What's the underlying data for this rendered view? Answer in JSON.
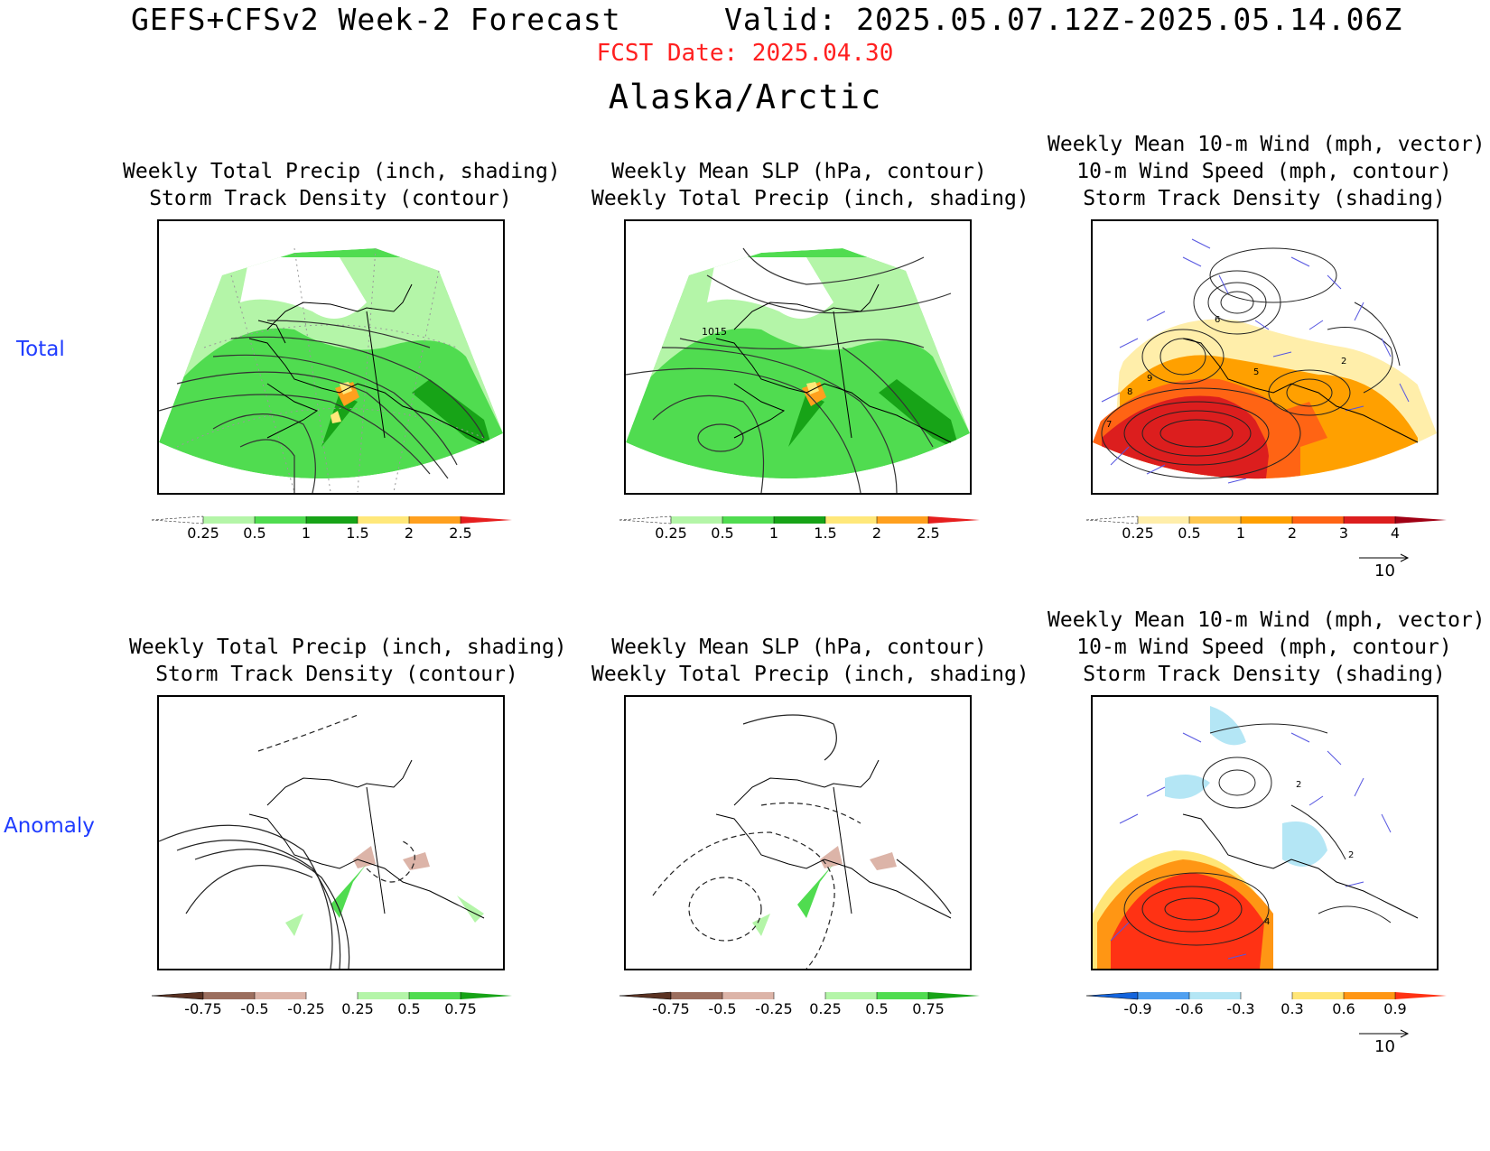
{
  "header": {
    "title_left": "GEFS+CFSv2 Week-2 Forecast",
    "title_right": "Valid: 2025.05.07.12Z-2025.05.14.06Z",
    "fcst_date": "FCST Date: 2025.04.30",
    "region": "Alaska/Arctic"
  },
  "rows": {
    "total_label": "Total",
    "anomaly_label": "Anomaly"
  },
  "panels": {
    "p1": {
      "line1": "Weekly Total Precip (inch, shading)",
      "line2": "Storm Track Density (contour)"
    },
    "p2": {
      "line1": "Weekly Mean SLP (hPa, contour)",
      "line2": "Weekly Total Precip (inch, shading)"
    },
    "p3": {
      "line1": "Weekly Mean 10-m Wind (mph, vector)",
      "line2": "10-m Wind Speed (mph, contour)",
      "line3": "Storm Track Density (shading)"
    },
    "p4": {
      "line1": "Weekly Total Precip (inch, shading)",
      "line2": "Storm Track Density (contour)"
    },
    "p5": {
      "line1": "Weekly Mean SLP (hPa, contour)",
      "line2": "Weekly Total Precip (inch, shading)"
    },
    "p6": {
      "line1": "Weekly Mean 10-m Wind (mph, vector)",
      "line2": "10-m Wind Speed (mph, contour)",
      "line3": "Storm Track Density (shading)"
    }
  },
  "map_labels": {
    "slp_isobar": "1015",
    "p3_contours": [
      "6",
      "9",
      "8",
      "7",
      "5",
      "2"
    ],
    "p6_contours": [
      "2",
      "2",
      "4"
    ]
  },
  "colorbars": {
    "precip_total": {
      "labels": [
        "0.25",
        "0.5",
        "1",
        "1.5",
        "2",
        "2.5"
      ],
      "colors": [
        "#ffffff",
        "#b4f5a8",
        "#50dc50",
        "#17a317",
        "#ffe87a",
        "#ffa01e",
        "#e61e1e"
      ]
    },
    "density_total": {
      "labels": [
        "0.25",
        "0.5",
        "1",
        "2",
        "3",
        "4"
      ],
      "colors": [
        "#ffffff",
        "#ffeeaa",
        "#ffc850",
        "#ffa000",
        "#ff6414",
        "#dc1e1e",
        "#a00014"
      ]
    },
    "precip_anom": {
      "labels": [
        "-0.75",
        "-0.5",
        "-0.25",
        "0.25",
        "0.5",
        "0.75"
      ],
      "colors": [
        "#5a3222",
        "#9b6e5e",
        "#dcb4a8",
        "#ffffff",
        "#b4f5a8",
        "#50dc50",
        "#17a317"
      ]
    },
    "density_anom": {
      "labels": [
        "-0.9",
        "-0.6",
        "-0.3",
        "0.3",
        "0.6",
        "0.9"
      ],
      "colors": [
        "#1464dc",
        "#50a0f0",
        "#b4e6f5",
        "#ffffff",
        "#ffe678",
        "#ff9614",
        "#ff3214"
      ]
    }
  },
  "vector_ref": {
    "value": "10"
  }
}
